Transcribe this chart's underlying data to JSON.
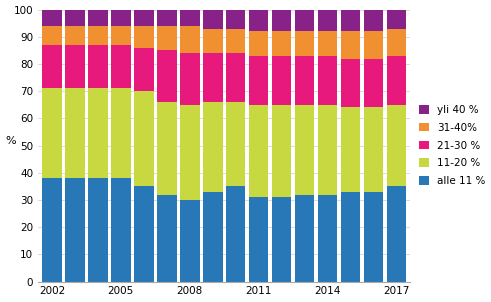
{
  "years": [
    2002,
    2003,
    2004,
    2005,
    2006,
    2007,
    2008,
    2009,
    2010,
    2011,
    2012,
    2013,
    2014,
    2015,
    2016,
    2017
  ],
  "alle11": [
    38,
    38,
    38,
    38,
    35,
    32,
    30,
    33,
    35,
    31,
    31,
    32,
    32,
    33,
    33,
    35
  ],
  "s11_20": [
    33,
    33,
    33,
    33,
    35,
    34,
    35,
    33,
    31,
    34,
    34,
    33,
    33,
    31,
    31,
    30
  ],
  "s21_30": [
    16,
    16,
    16,
    16,
    16,
    19,
    19,
    18,
    18,
    18,
    18,
    18,
    18,
    18,
    18,
    18
  ],
  "s31_40": [
    7,
    7,
    7,
    7,
    8,
    9,
    10,
    9,
    9,
    9,
    9,
    9,
    9,
    10,
    10,
    10
  ],
  "yli40": [
    6,
    6,
    6,
    6,
    6,
    6,
    6,
    7,
    7,
    8,
    8,
    8,
    8,
    8,
    8,
    7
  ],
  "colors": {
    "alle11": "#2878b8",
    "s11_20": "#c8d840",
    "s21_30": "#e8197d",
    "s31_40": "#f09030",
    "yli40": "#882288"
  },
  "legend_labels": [
    "alle 11 %",
    "11-20 %",
    "21-30 %",
    "31-40%",
    "yli 40 %"
  ],
  "ylabel": "%",
  "ylim": [
    0,
    100
  ],
  "yticks": [
    0,
    10,
    20,
    30,
    40,
    50,
    60,
    70,
    80,
    90,
    100
  ],
  "xtick_show": [
    2002,
    2005,
    2008,
    2011,
    2014,
    2017
  ],
  "background_color": "#ffffff",
  "grid_color": "#cccccc",
  "bar_width": 0.85
}
